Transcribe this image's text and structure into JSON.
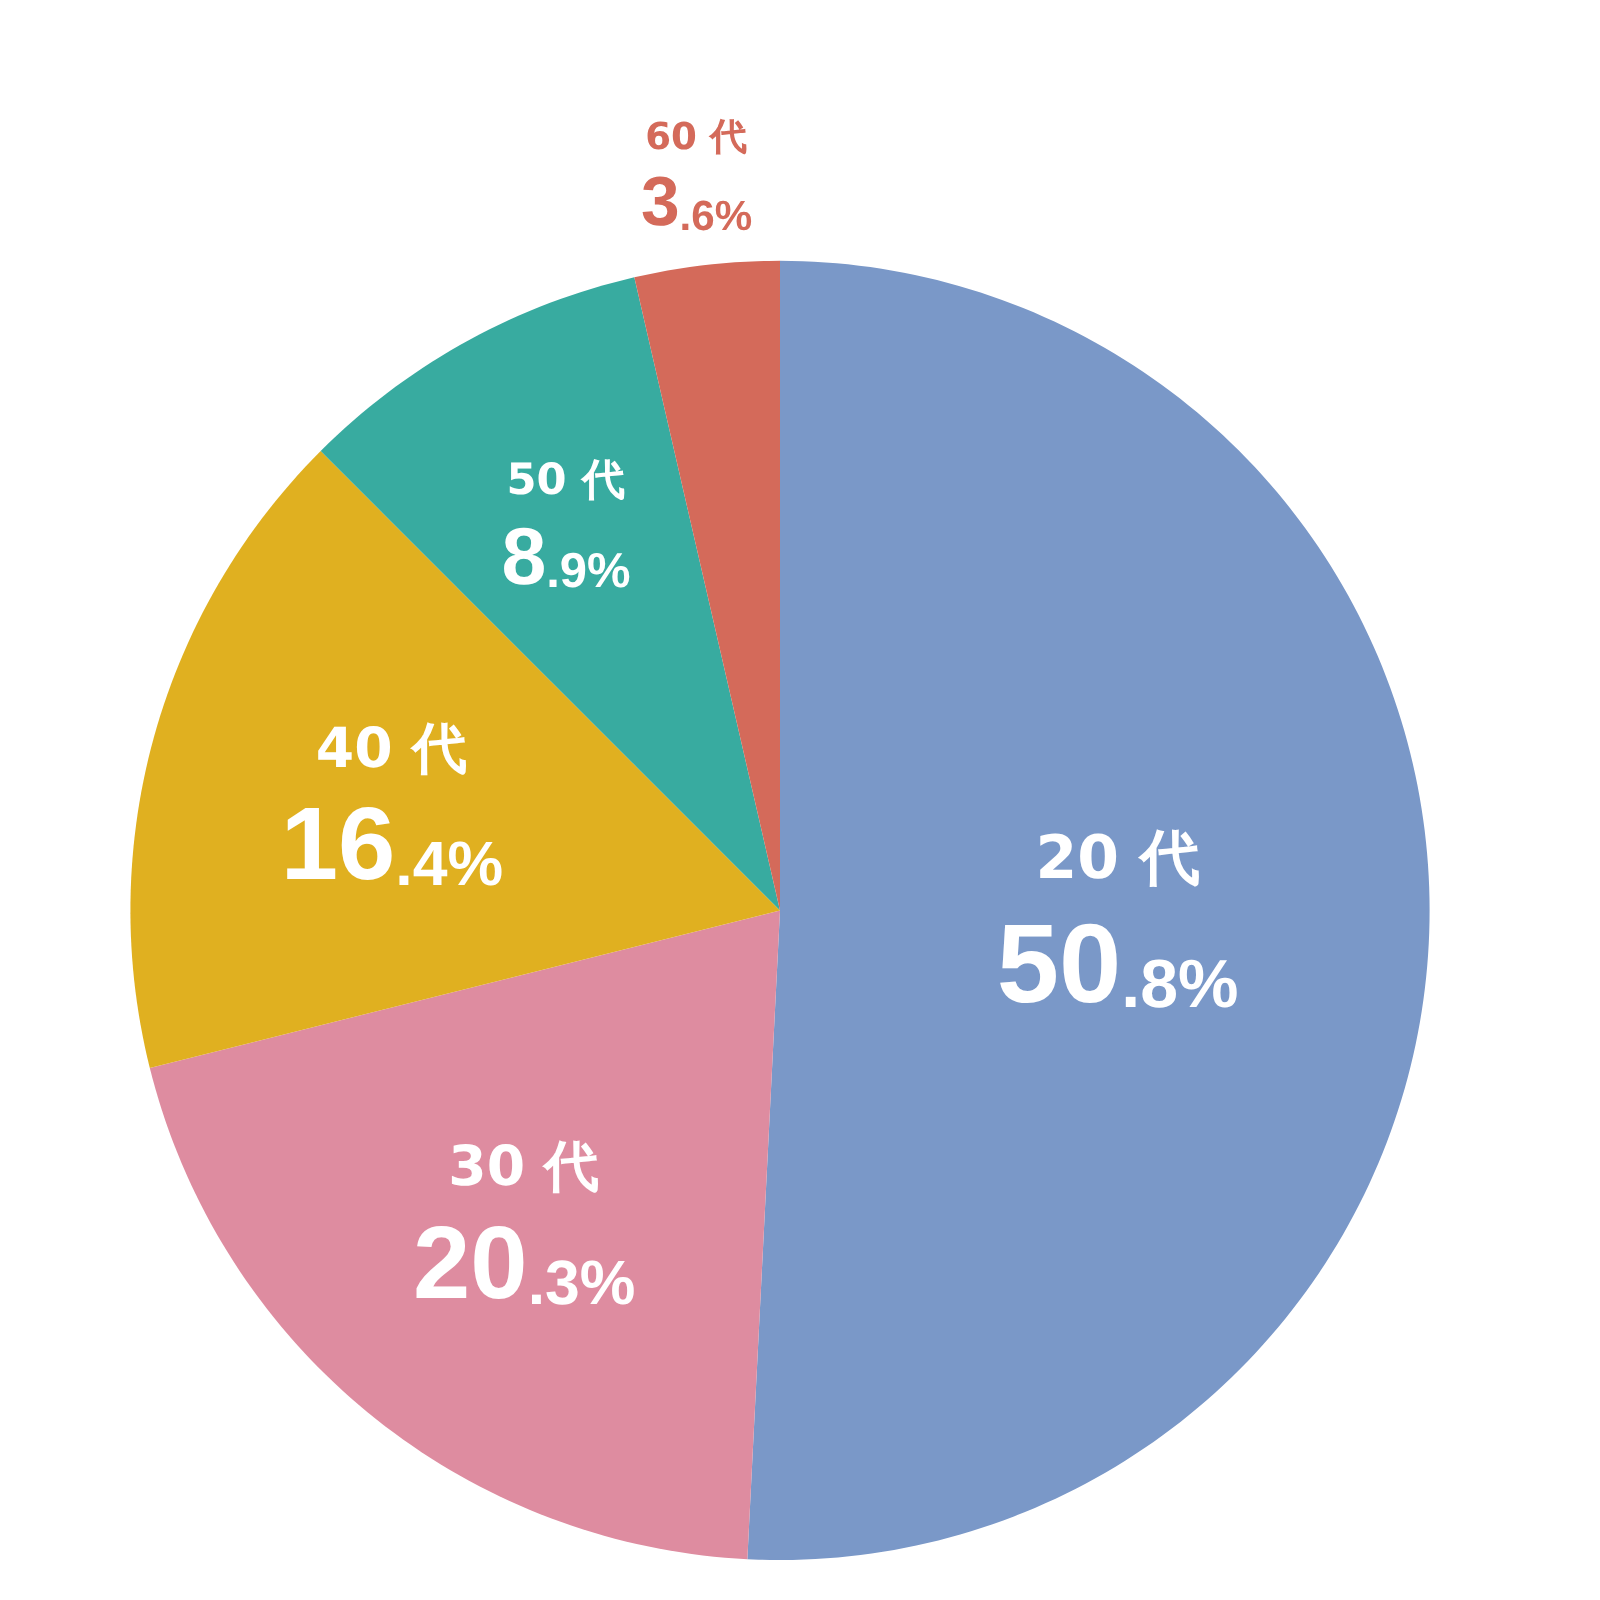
{
  "chart_data": {
    "type": "pie",
    "categories": [
      "20 代",
      "30 代",
      "40 代",
      "50 代",
      "60 代"
    ],
    "values": [
      50.8,
      20.3,
      16.4,
      8.9,
      3.6
    ],
    "value_labels": [
      "50.8%",
      "20.3%",
      "16.4%",
      "8.9%",
      "3.6%"
    ],
    "colors": [
      "#7a98c8",
      "#de8ca0",
      "#e0b020",
      "#38aba0",
      "#d46a5a"
    ]
  }
}
